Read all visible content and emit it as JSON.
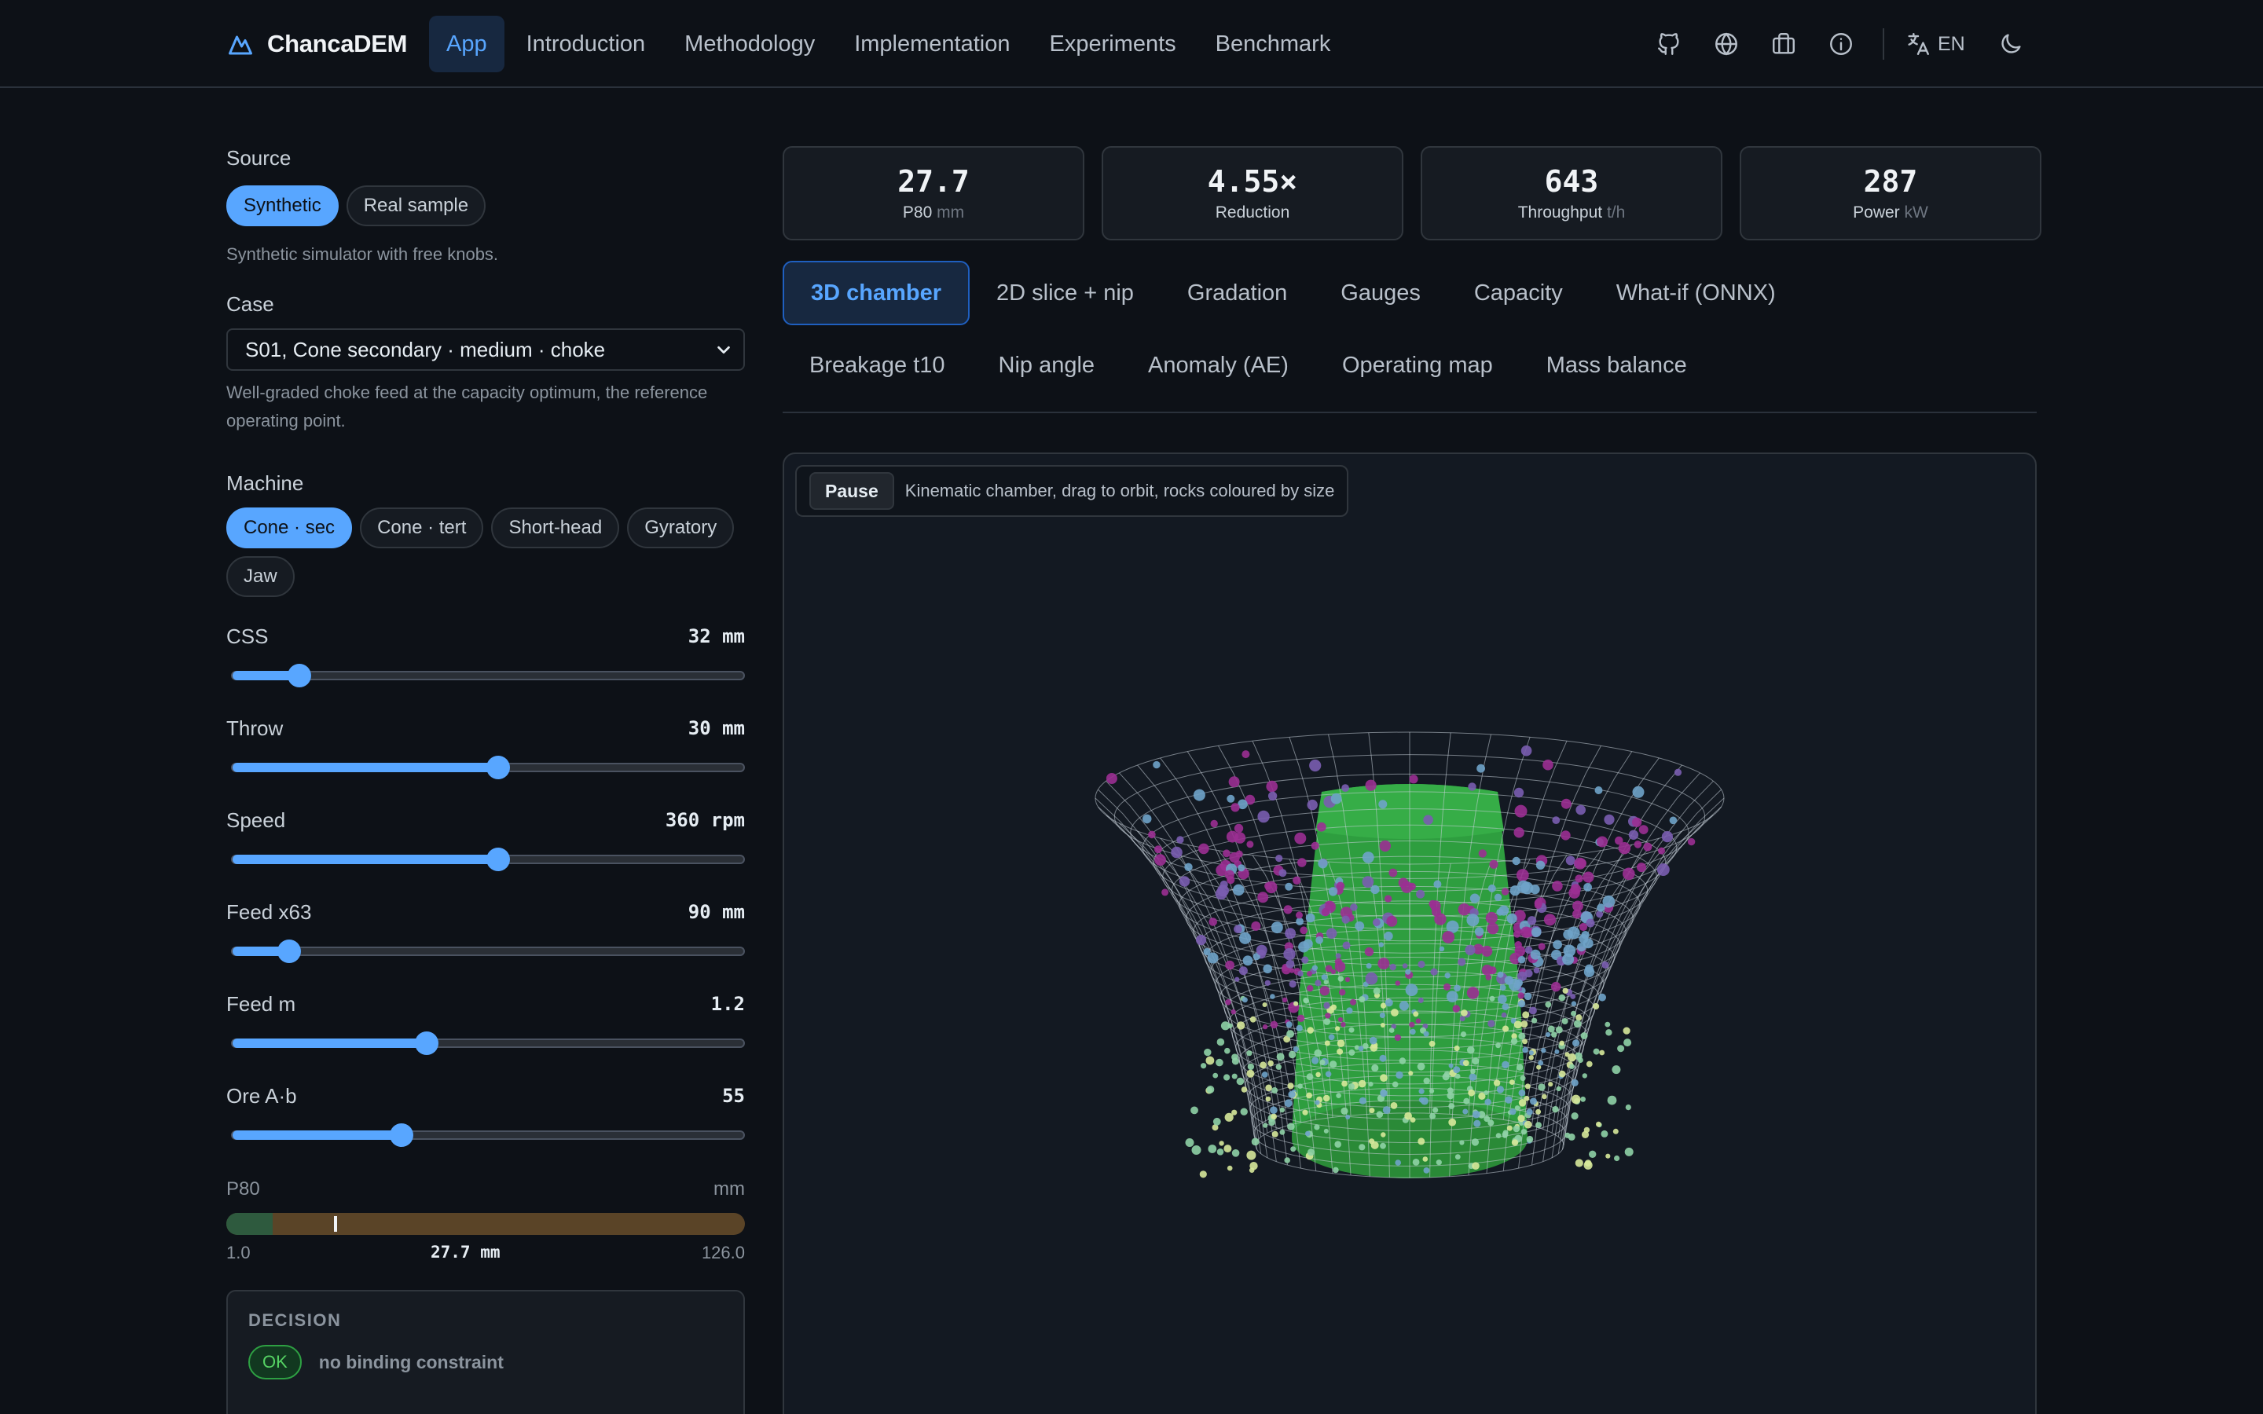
{
  "app": {
    "brand": "ChancaDEM",
    "nav": [
      "App",
      "Introduction",
      "Methodology",
      "Implementation",
      "Experiments",
      "Benchmark"
    ],
    "language": "EN",
    "header_icons": [
      "github-icon",
      "globe-icon",
      "briefcase-icon",
      "info-icon",
      "translate-icon",
      "moon-icon"
    ]
  },
  "sidebar": {
    "source_label": "Source",
    "source_options": [
      "Synthetic",
      "Real sample"
    ],
    "source_hint": "Synthetic simulator with free knobs.",
    "case_label": "Case",
    "case_value": "S01, Cone secondary · medium · choke",
    "case_hint": "Well-graded choke feed at the capacity optimum, the reference operating point.",
    "machine_label": "Machine",
    "machine_options": [
      "Cone · sec",
      "Cone · tert",
      "Short-head",
      "Gyratory",
      "Jaw"
    ],
    "sliders": [
      {
        "label": "CSS",
        "value": "32 mm",
        "fraction": 0.13
      },
      {
        "label": "Throw",
        "value": "30 mm",
        "fraction": 0.52
      },
      {
        "label": "Speed",
        "value": "360 rpm",
        "fraction": 0.52
      },
      {
        "label": "Feed x63",
        "value": "90 mm",
        "fraction": 0.11
      },
      {
        "label": "Feed m",
        "value": "1.2",
        "fraction": 0.38
      },
      {
        "label": "Ore A·b",
        "value": "55",
        "fraction": 0.33
      }
    ],
    "p80": {
      "label": "P80",
      "unit": "mm",
      "min": "1.0",
      "max": "126.0",
      "current": "27.7 mm",
      "current_fraction": 0.21,
      "green_fraction": 0.09
    },
    "decision": {
      "title": "DECISION",
      "badge": "OK",
      "message": "no binding constraint"
    }
  },
  "kpis": [
    {
      "value": "27.7",
      "label": "P80",
      "unit": "mm"
    },
    {
      "value": "4.55×",
      "label": "Reduction",
      "unit": ""
    },
    {
      "value": "643",
      "label": "Throughput",
      "unit": "t/h"
    },
    {
      "value": "287",
      "label": "Power",
      "unit": "kW"
    }
  ],
  "tabs": {
    "row1": [
      "3D chamber",
      "2D slice + nip",
      "Gradation",
      "Gauges",
      "Capacity",
      "What-if (ONNX)"
    ],
    "row2": [
      "Breakage t10",
      "Nip angle",
      "Anomaly (AE)",
      "Operating map",
      "Mass balance"
    ]
  },
  "viewer": {
    "pause_label": "Pause",
    "caption": "Kinematic chamber, drag to orbit, rocks coloured by size"
  },
  "colors": {
    "accent": "#58a6ff",
    "background": "#0d1117",
    "mantle": "#2e9e3f",
    "ok": "#56d364",
    "rock_palette": [
      "#9b2f92",
      "#7a5db0",
      "#6fa3c9",
      "#8fd1a6",
      "#d7e89a"
    ]
  }
}
